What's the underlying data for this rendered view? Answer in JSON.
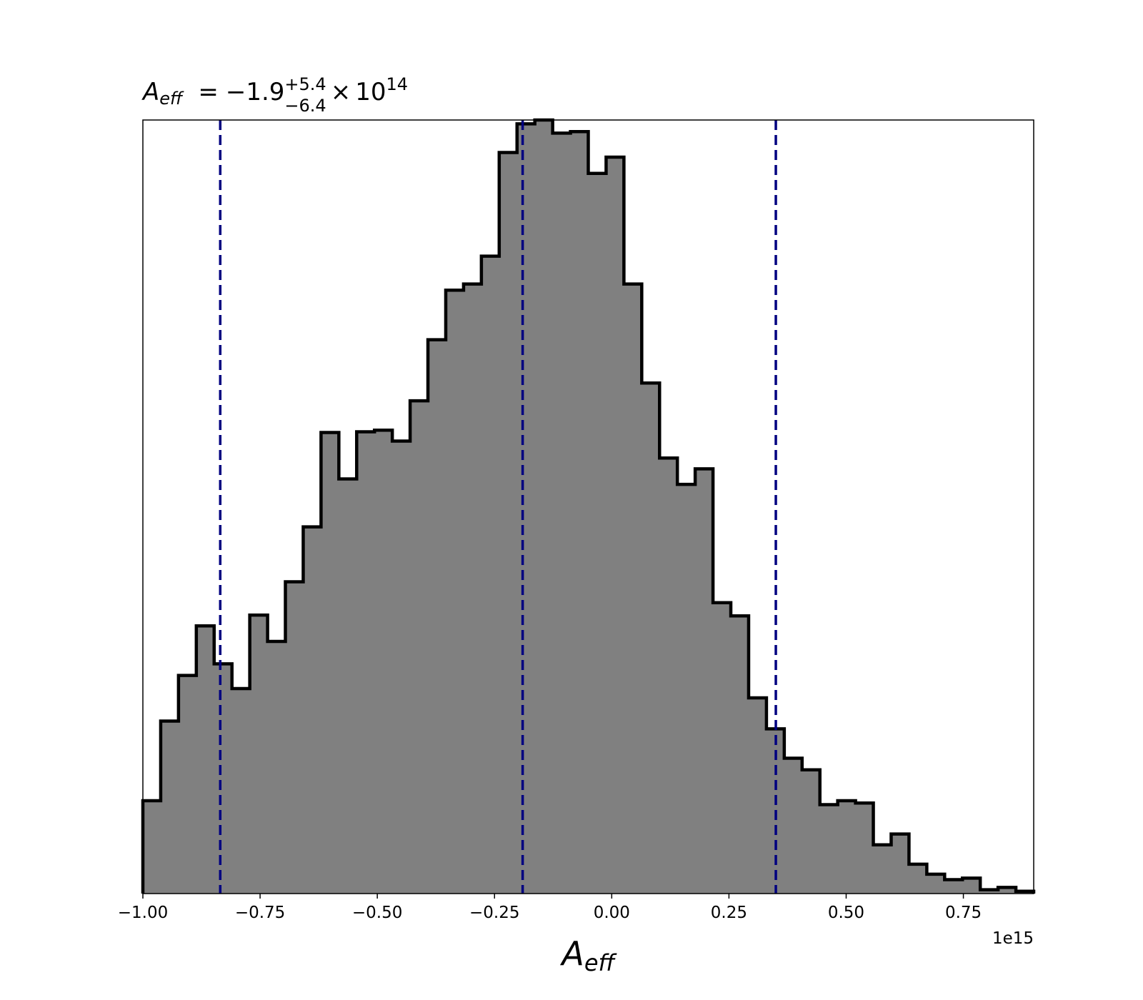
{
  "chart_data": {
    "type": "histogram",
    "title": {
      "symbol": "A",
      "subscript": "eff",
      "equals": "=",
      "value": "−1.9",
      "upper": "+5.4",
      "lower": "−6.4",
      "times": "×",
      "base": "10",
      "exponent": "14"
    },
    "xlabel": {
      "symbol": "A",
      "subscript": "eff"
    },
    "x_offset_label": "1e15",
    "xlim": [
      -1.0,
      0.9
    ],
    "ylim": [
      0,
      1000
    ],
    "x_ticks": [
      {
        "value": -1.0,
        "label": "−1.00"
      },
      {
        "value": -0.75,
        "label": "−0.75"
      },
      {
        "value": -0.5,
        "label": "−0.50"
      },
      {
        "value": -0.25,
        "label": "−0.25"
      },
      {
        "value": 0.0,
        "label": "0.00"
      },
      {
        "value": 0.25,
        "label": "0.25"
      },
      {
        "value": 0.5,
        "label": "0.50"
      },
      {
        "value": 0.75,
        "label": "0.75"
      }
    ],
    "bin_edges": [
      -1.0,
      -0.962,
      -0.924,
      -0.886,
      -0.848,
      -0.81,
      -0.772,
      -0.734,
      -0.696,
      -0.658,
      -0.62,
      -0.582,
      -0.544,
      -0.506,
      -0.468,
      -0.43,
      -0.392,
      -0.354,
      -0.316,
      -0.278,
      -0.24,
      -0.202,
      -0.164,
      -0.126,
      -0.088,
      -0.05,
      -0.012,
      0.026,
      0.064,
      0.102,
      0.14,
      0.178,
      0.216,
      0.254,
      0.292,
      0.33,
      0.368,
      0.406,
      0.444,
      0.482,
      0.52,
      0.558,
      0.596,
      0.634,
      0.672,
      0.71,
      0.748,
      0.786,
      0.824,
      0.862,
      0.9
    ],
    "counts": [
      120,
      223,
      282,
      346,
      297,
      265,
      360,
      326,
      403,
      474,
      596,
      536,
      597,
      599,
      585,
      637,
      716,
      780,
      788,
      824,
      958,
      995,
      1000,
      983,
      985,
      931,
      952,
      788,
      660,
      563,
      529,
      549,
      376,
      359,
      253,
      213,
      175,
      160,
      115,
      120,
      117,
      63,
      77,
      38,
      25,
      18,
      20,
      5,
      8,
      3
    ],
    "fill_color": "#808080",
    "edge_color": "#000000",
    "vlines": [
      {
        "x": -0.835,
        "label": ""
      },
      {
        "x": -0.19,
        "label": ""
      },
      {
        "x": 0.35,
        "label": ""
      }
    ],
    "vline_color": "#000080",
    "vline_style": "dashed",
    "y_ticks_visible": false,
    "grid": false
  }
}
